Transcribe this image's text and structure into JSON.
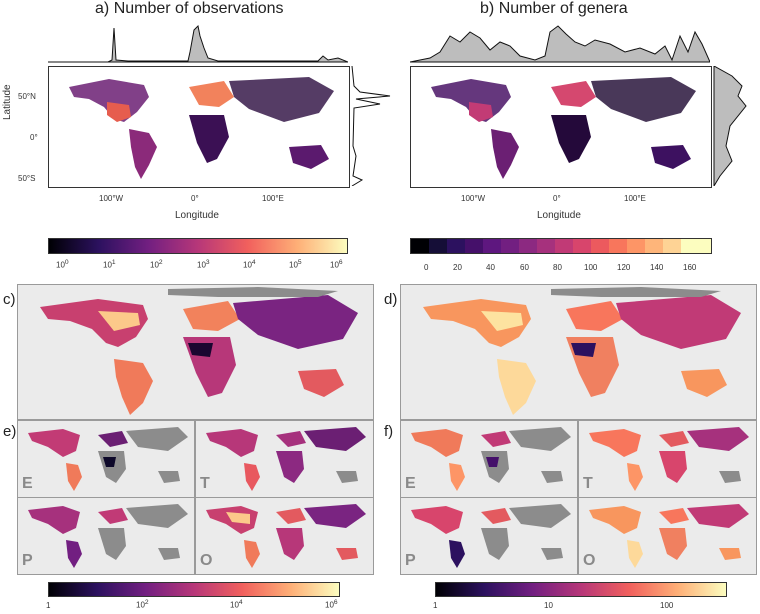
{
  "panels": {
    "a": {
      "letter": "a)",
      "title": "Number of observations"
    },
    "b": {
      "letter": "b)",
      "title": "Number of genera"
    },
    "c": {
      "letter": "c)"
    },
    "d": {
      "letter": "d)"
    },
    "e": {
      "letter": "e)"
    },
    "f": {
      "letter": "f)"
    }
  },
  "axes": {
    "ylabel": "Latitude",
    "xlabel": "Longitude",
    "lat_ticks": [
      "50°N",
      "0°",
      "50°S"
    ],
    "lon_ticks": [
      "100°W",
      "0°",
      "100°E"
    ]
  },
  "colorbars": {
    "obs": {
      "ticks": [
        "10",
        "10",
        "10",
        "10",
        "10",
        "10",
        "10"
      ],
      "exps": [
        "0",
        "1",
        "2",
        "3",
        "4",
        "5",
        "6"
      ]
    },
    "genera": {
      "ticks": [
        "0",
        "20",
        "40",
        "60",
        "80",
        "100",
        "120",
        "140",
        "160"
      ]
    },
    "bottom_left": {
      "t1": "1",
      "t2": "10",
      "e2": "2",
      "t3": "10",
      "e3": "4",
      "t4": "10",
      "e4": "6"
    },
    "bottom_right": {
      "t1": "1",
      "t2": "10",
      "t3": "100"
    }
  },
  "submap_labels": {
    "e": "E",
    "t": "T",
    "p": "P",
    "o": "O"
  },
  "colors": {
    "dark": "#0d0829",
    "mid": "#b5367a",
    "light": "#fcfdbf",
    "land_gray": "#8c8c8c"
  }
}
